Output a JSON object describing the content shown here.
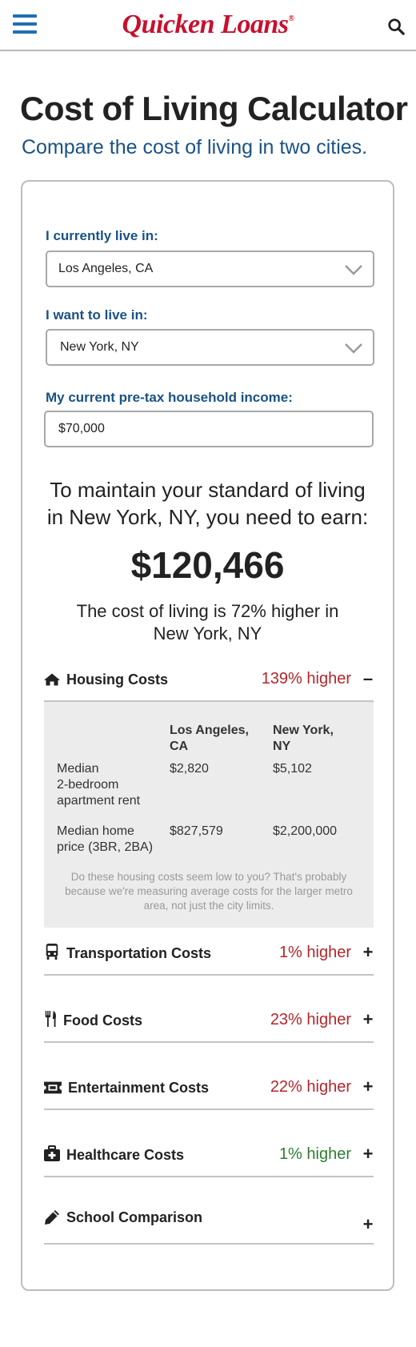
{
  "header": {
    "logo_text": "Quicken Loans",
    "logo_mark": "®"
  },
  "page": {
    "title": "Cost of Living Calculator",
    "subtitle": "Compare the cost of living in two cities."
  },
  "form": {
    "current_label": "I currently live in:",
    "current_value": "Los Angeles, CA",
    "target_label": "I want to live in:",
    "target_value": "New York, NY",
    "income_label": "My current pre-tax household income:",
    "income_value": "$70,000"
  },
  "result": {
    "line1": "To maintain your standard of living",
    "line2": "in New York, NY, you need to earn:",
    "amount": "$120,466",
    "sub_line1": "The cost of living is 72% higher in",
    "sub_line2": "New York, NY"
  },
  "housing": {
    "name": "Housing Costs",
    "diff": "139% higher",
    "toggle": "–",
    "col1_line1": "Los Angeles,",
    "col1_line2": "CA",
    "col2_line1": "New York,",
    "col2_line2": "NY",
    "rows": [
      {
        "label_lines": [
          "Median",
          "2-bedroom",
          "apartment rent"
        ],
        "city1": "$2,820",
        "city2": "$5,102"
      },
      {
        "label_lines": [
          "Median home",
          "price (3BR, 2BA)"
        ],
        "city1": "$827,579",
        "city2": "$2,200,000"
      }
    ],
    "note": "Do these housing costs seem low to you? That's probably because we're measuring average costs for the larger metro area, not just the city limits."
  },
  "categories": [
    {
      "name": "Transportation Costs",
      "diff": "1% higher",
      "status": "red",
      "toggle": "+",
      "icon": "bus-icon"
    },
    {
      "name": "Food Costs",
      "diff": "23% higher",
      "status": "red",
      "toggle": "+",
      "icon": "utensils-icon"
    },
    {
      "name": "Entertainment Costs",
      "diff": "22% higher",
      "status": "red",
      "toggle": "+",
      "icon": "ticket-icon"
    },
    {
      "name": "Healthcare Costs",
      "diff": "1% higher",
      "status": "green",
      "toggle": "+",
      "icon": "medkit-icon"
    },
    {
      "name": "School Comparison",
      "diff": "",
      "status": "",
      "toggle": "+",
      "icon": "pencil-icon"
    }
  ],
  "colors": {
    "brand_red": "#c8102e",
    "brand_blue": "#1a5285",
    "higher_red": "#b3262b",
    "higher_green": "#2e7d32"
  }
}
